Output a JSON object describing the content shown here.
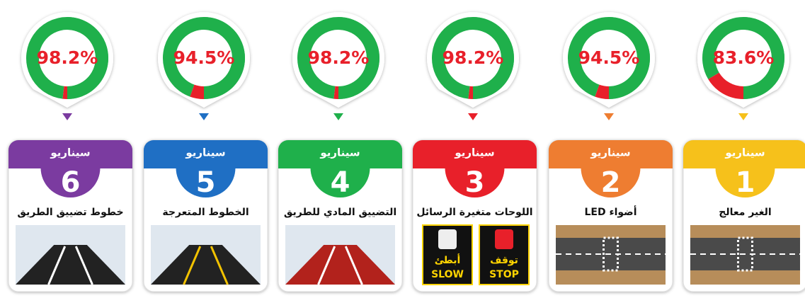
{
  "chart_data": [
    {
      "type": "donut",
      "values": [
        98.2
      ],
      "value_labels": [
        "98.2%"
      ],
      "color": "#1fb04b",
      "rest_color": "#e8202a",
      "marker_color": "#7b3ba0"
    },
    {
      "type": "donut",
      "values": [
        94.5
      ],
      "value_labels": [
        "94.5%"
      ],
      "color": "#1fb04b",
      "rest_color": "#e8202a",
      "marker_color": "#1f6fc4"
    },
    {
      "type": "donut",
      "values": [
        98.2
      ],
      "value_labels": [
        "98.2%"
      ],
      "color": "#1fb04b",
      "rest_color": "#e8202a",
      "marker_color": "#1fb04b"
    },
    {
      "type": "donut",
      "values": [
        98.2
      ],
      "value_labels": [
        "98.2%"
      ],
      "color": "#1fb04b",
      "rest_color": "#e8202a",
      "marker_color": "#e8202a"
    },
    {
      "type": "donut",
      "values": [
        94.5
      ],
      "value_labels": [
        "94.5%"
      ],
      "color": "#1fb04b",
      "rest_color": "#e8202a",
      "marker_color": "#ee7d31"
    },
    {
      "type": "donut",
      "values": [
        83.6
      ],
      "value_labels": [
        "83.6%"
      ],
      "color": "#1fb04b",
      "rest_color": "#e8202a",
      "marker_color": "#f6c11b"
    }
  ],
  "cards": [
    {
      "header": "سيناريو",
      "number": 6,
      "title": "خطوط تضييق الطريق",
      "color": "#7b3ba0"
    },
    {
      "header": "سيناريو",
      "number": 5,
      "title": "الخطوط المتعرجة",
      "color": "#1f6fc4"
    },
    {
      "header": "سيناريو",
      "number": 4,
      "title": "التضييق المادي للطريق",
      "color": "#1fb04b"
    },
    {
      "header": "سيناريو",
      "number": 3,
      "title": "اللوحات متغيرة الرسائل",
      "color": "#e8202a",
      "signs": [
        {
          "ar": "أبطئ",
          "en": "SLOW"
        },
        {
          "ar": "توقف",
          "en": "STOP"
        }
      ]
    },
    {
      "header": "سيناريو",
      "number": 2,
      "title": "أضواء LED",
      "color": "#ee7d31"
    },
    {
      "header": "سيناريو",
      "number": 1,
      "title": "الغير معالج",
      "color": "#f6c11b"
    }
  ]
}
